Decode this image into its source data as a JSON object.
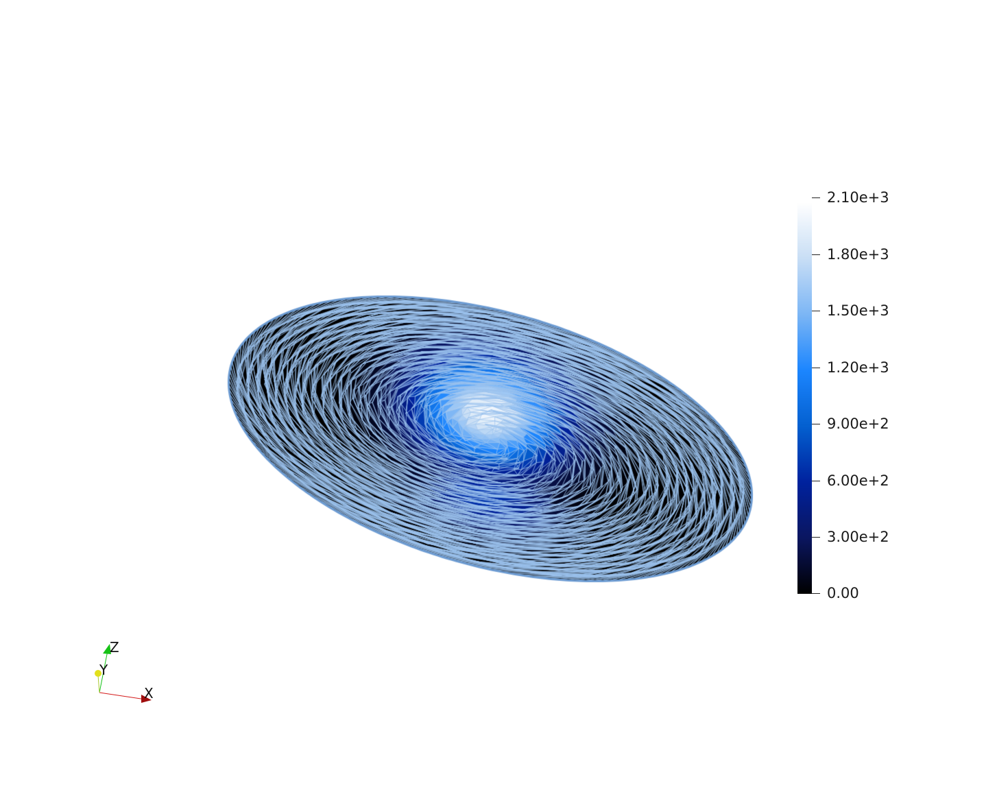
{
  "viewer": {
    "colormap": {
      "stops": [
        "#000000",
        "#0b1660",
        "#00229e",
        "#0460d0",
        "#1c86ff",
        "#7cb6f5",
        "#c8def5",
        "#ffffff"
      ],
      "min": 0,
      "max": 2100
    },
    "mesh": {
      "line_color": "#9cc3ee",
      "edge_color": "#6c9bd2",
      "peak_color": "#e4ecf4"
    },
    "colorbar": {
      "labels": [
        "2.10e+3",
        "1.80e+3",
        "1.50e+3",
        "1.20e+3",
        "9.00e+2",
        "6.00e+2",
        "3.00e+2",
        "0.00"
      ]
    },
    "axes": {
      "x_label": "X",
      "y_label": "Y",
      "z_label": "Z",
      "x_color": "#d41b1b",
      "y_color": "#e2e01b",
      "z_color": "#16c216"
    }
  }
}
